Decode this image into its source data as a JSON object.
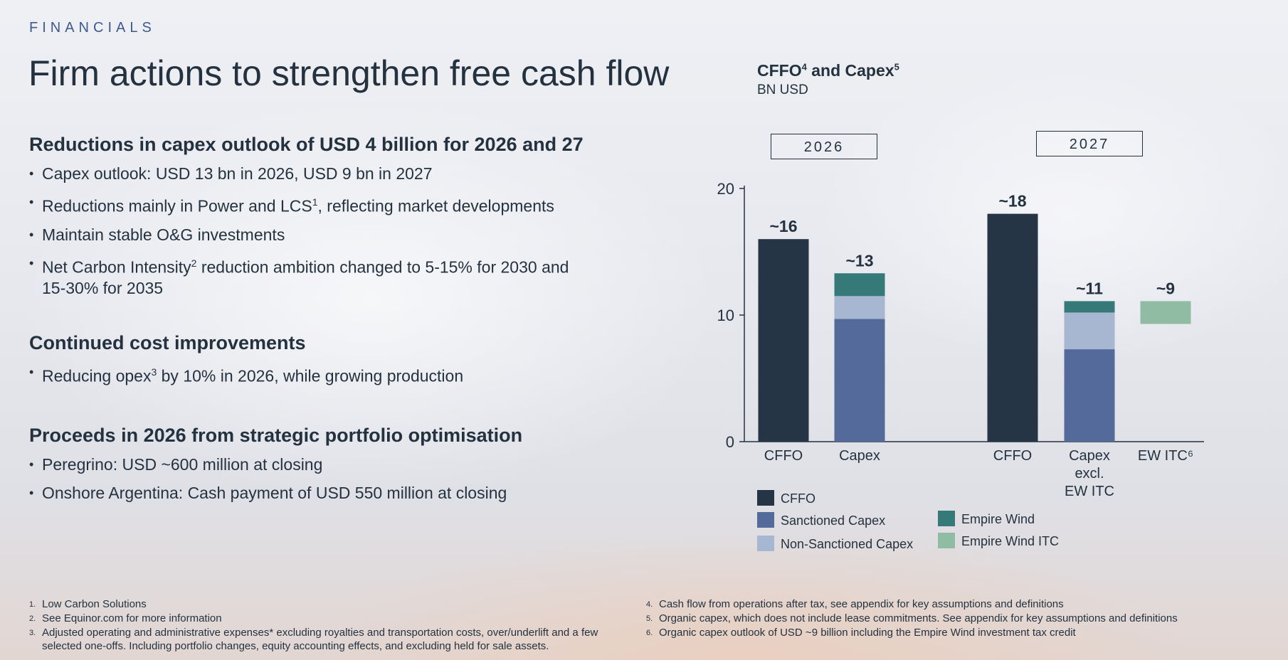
{
  "header": {
    "section_tag": "FINANCIALS",
    "title": "Firm actions to strengthen free cash flow"
  },
  "blocks": [
    {
      "heading": "Reductions in capex outlook of USD 4 billion for 2026 and 27",
      "bullets": [
        {
          "text": "Capex outlook: USD 13 bn in 2026, USD 9 bn in 2027"
        },
        {
          "text": "Reductions mainly in Power and LCS",
          "sup": "1",
          "after": ", reflecting market developments"
        },
        {
          "text": "Maintain stable O&G investments"
        },
        {
          "text": "Net Carbon Intensity",
          "sup": "2",
          "after": " reduction ambition changed to 5-15% for 2030 and 15-30% for 2035"
        }
      ]
    },
    {
      "heading": "Continued cost improvements",
      "bullets": [
        {
          "text": "Reducing opex",
          "sup": "3",
          "after": " by 10% in 2026, while growing production"
        }
      ]
    },
    {
      "heading": "Proceeds in 2026 from strategic portfolio optimisation",
      "bullets": [
        {
          "text": "Peregrino: USD ~600 million at closing"
        },
        {
          "text": "Onshore Argentina: Cash payment of USD 550 million at closing"
        }
      ]
    }
  ],
  "chart_data": {
    "type": "bar",
    "stacked": true,
    "title": "CFFO",
    "title_sup": "4",
    "title_mid": " and Capex",
    "title_sup2": "5",
    "unit": "BN USD",
    "ylim": [
      0,
      20
    ],
    "yticks": [
      "0",
      "10",
      "20"
    ],
    "groups": [
      "2026",
      "2027"
    ],
    "categories": [
      "CFFO",
      "Capex",
      "CFFO",
      "Capex excl. EW ITC",
      "EW ITC6"
    ],
    "category_labels": [
      [
        "CFFO"
      ],
      [
        "Capex"
      ],
      [
        "CFFO"
      ],
      [
        "Capex",
        "excl.",
        "EW ITC"
      ],
      [
        "EW ITC⁶"
      ]
    ],
    "category_group": [
      0,
      0,
      1,
      1,
      1
    ],
    "data_labels": [
      "~16",
      "~13",
      "~18",
      "~11",
      "~9"
    ],
    "series": [
      {
        "name": "CFFO",
        "color": "#263545",
        "values": [
          16,
          0,
          18,
          0,
          0
        ]
      },
      {
        "name": "Sanctioned Capex",
        "color": "#536a9b",
        "values": [
          0,
          9.7,
          0,
          7.3,
          0
        ]
      },
      {
        "name": "Non-Sanctioned Capex",
        "color": "#a8b7d1",
        "values": [
          0,
          1.8,
          0,
          2.9,
          0
        ]
      },
      {
        "name": "Empire Wind",
        "color": "#357a78",
        "values": [
          0,
          1.8,
          0,
          0.9,
          0
        ]
      },
      {
        "name": "Empire Wind ITC",
        "color": "#8fbca3",
        "values": [
          0,
          0,
          0,
          0,
          1.8
        ]
      }
    ],
    "floating_base": [
      0,
      0,
      0,
      0,
      9.3
    ],
    "legend": [
      {
        "label": "CFFO",
        "color": "#263545"
      },
      {
        "label": "Sanctioned Capex",
        "color": "#536a9b"
      },
      {
        "label": "Non-Sanctioned Capex",
        "color": "#a8b7d1"
      },
      {
        "label": "Empire Wind",
        "color": "#357a78"
      },
      {
        "label": "Empire Wind ITC",
        "color": "#8fbca3"
      }
    ]
  },
  "footnotes_left": [
    {
      "num": "1.",
      "text": "Low Carbon Solutions"
    },
    {
      "num": "2.",
      "text": "See Equinor.com for more information"
    },
    {
      "num": "3.",
      "text": "Adjusted operating and administrative expenses* excluding royalties and transportation costs, over/underlift and a few selected one-offs. Including portfolio changes, equity accounting effects, and excluding held for sale assets."
    }
  ],
  "footnotes_right": [
    {
      "num": "4.",
      "text": "Cash flow from operations after tax, see appendix for key assumptions and definitions"
    },
    {
      "num": "5.",
      "text": "Organic capex, which does not include lease commitments. See appendix for key assumptions and definitions"
    },
    {
      "num": "6.",
      "text": "Organic capex outlook of USD ~9 billion including the Empire Wind investment tax credit"
    }
  ]
}
